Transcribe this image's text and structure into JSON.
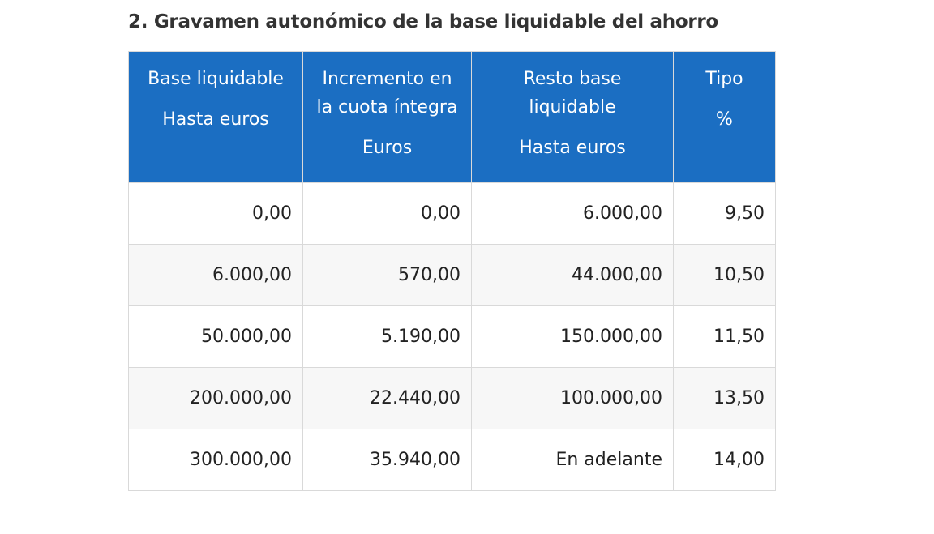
{
  "section": {
    "title": "2. Gravamen autonómico de la base liquidable del ahorro"
  },
  "table": {
    "headers": [
      {
        "line1": "Base liquidable",
        "line2": "Hasta euros"
      },
      {
        "line1": "Incremento en",
        "line2": "la cuota íntegra",
        "line3": "Euros"
      },
      {
        "line1": "Resto base",
        "line2": "liquidable",
        "line3": "Hasta euros"
      },
      {
        "line1": "Tipo",
        "line2": "%"
      }
    ],
    "rows": [
      [
        "0,00",
        "0,00",
        "6.000,00",
        "9,50"
      ],
      [
        "6.000,00",
        "570,00",
        "44.000,00",
        "10,50"
      ],
      [
        "50.000,00",
        "5.190,00",
        "150.000,00",
        "11,50"
      ],
      [
        "200.000,00",
        "22.440,00",
        "100.000,00",
        "13,50"
      ],
      [
        "300.000,00",
        "35.940,00",
        "En adelante",
        "14,00"
      ]
    ]
  },
  "colors": {
    "header_background": "#1b6ec2",
    "header_text": "#ffffff",
    "border": "#d9d9d9",
    "alt_row_background": "#f7f7f7"
  }
}
